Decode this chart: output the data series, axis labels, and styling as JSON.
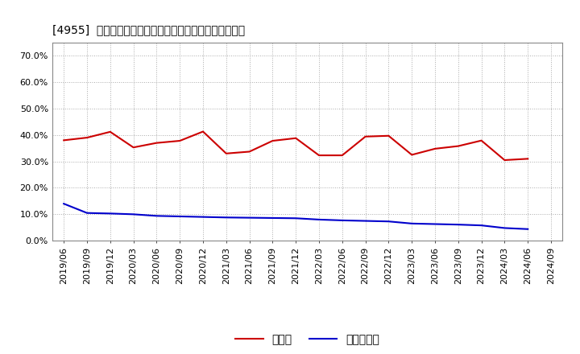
{
  "title": "[4955]  現預金、有利子負債の総資産に対する比率の推移",
  "cash_dates": [
    "2019/06",
    "2019/09",
    "2019/12",
    "2020/03",
    "2020/06",
    "2020/09",
    "2020/12",
    "2021/03",
    "2021/06",
    "2021/09",
    "2021/12",
    "2022/03",
    "2022/06",
    "2022/09",
    "2022/12",
    "2023/03",
    "2023/06",
    "2023/09",
    "2023/12",
    "2024/03",
    "2024/06"
  ],
  "cash_values": [
    0.38,
    0.39,
    0.412,
    0.353,
    0.37,
    0.378,
    0.413,
    0.33,
    0.337,
    0.378,
    0.388,
    0.323,
    0.323,
    0.394,
    0.397,
    0.325,
    0.348,
    0.358,
    0.379,
    0.305,
    0.31
  ],
  "debt_dates": [
    "2019/06",
    "2019/09",
    "2019/12",
    "2020/03",
    "2020/06",
    "2020/09",
    "2020/12",
    "2021/03",
    "2021/06",
    "2021/09",
    "2021/12",
    "2022/03",
    "2022/06",
    "2022/09",
    "2022/12",
    "2023/03",
    "2023/06",
    "2023/09",
    "2023/12",
    "2024/03",
    "2024/06"
  ],
  "debt_values": [
    0.14,
    0.105,
    0.103,
    0.1,
    0.094,
    0.092,
    0.09,
    0.088,
    0.087,
    0.086,
    0.085,
    0.08,
    0.077,
    0.075,
    0.073,
    0.065,
    0.063,
    0.061,
    0.058,
    0.048,
    0.044
  ],
  "cash_color": "#cc0000",
  "debt_color": "#0000cc",
  "background_color": "#ffffff",
  "plot_bg_color": "#ffffff",
  "grid_color": "#aaaaaa",
  "ylim": [
    0.0,
    0.75
  ],
  "yticks": [
    0.0,
    0.1,
    0.2,
    0.3,
    0.4,
    0.5,
    0.6,
    0.7
  ],
  "legend_cash": "現預金",
  "legend_debt": "有利子負債",
  "title_fontsize": 12,
  "tick_fontsize": 8,
  "legend_fontsize": 10,
  "extra_xtick": "2024/09"
}
